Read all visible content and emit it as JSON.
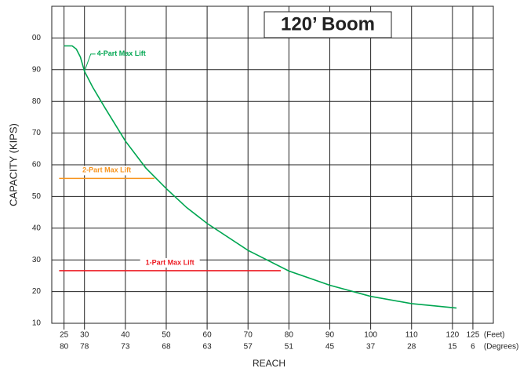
{
  "chart_data": {
    "type": "line",
    "title": "120’ Boom",
    "x_label": "REACH",
    "y_label": "CAPACITY (KIPS)",
    "x_unit_label": "(Feet)",
    "x2_unit_label": "(Degrees)",
    "xlim": [
      22,
      130
    ],
    "ylim": [
      10,
      110
    ],
    "xticks": [
      25,
      30,
      40,
      50,
      60,
      70,
      80,
      90,
      100,
      110,
      120,
      125
    ],
    "xtick_degrees": [
      80,
      78,
      73,
      68,
      63,
      57,
      51,
      45,
      37,
      28,
      15,
      6
    ],
    "yticks": [
      10,
      20,
      30,
      40,
      50,
      60,
      70,
      80,
      90,
      {
        "value": 100,
        "label": "00"
      }
    ],
    "grid": true,
    "series": [
      {
        "name": "4-Part Max Lift",
        "color": "#00a651",
        "x": [
          25,
          27,
          28,
          29,
          30,
          32,
          35,
          40,
          45,
          50,
          55,
          60,
          70,
          80,
          90,
          100,
          110,
          121
        ],
        "values": [
          97.5,
          97.5,
          96.5,
          94,
          89.5,
          84.5,
          78,
          67.5,
          59,
          52.5,
          46.5,
          41.5,
          33,
          26.5,
          22,
          18.5,
          16.2,
          14.8
        ]
      },
      {
        "name": "2-Part Max Lift",
        "color": "#f7941d",
        "x": [
          23.8,
          47.1
        ],
        "values": [
          55.7,
          55.7
        ]
      },
      {
        "name": "1-Part Max Lift",
        "color": "#ed1c24",
        "x": [
          23.8,
          78
        ],
        "values": [
          26.6,
          26.6
        ]
      }
    ]
  }
}
